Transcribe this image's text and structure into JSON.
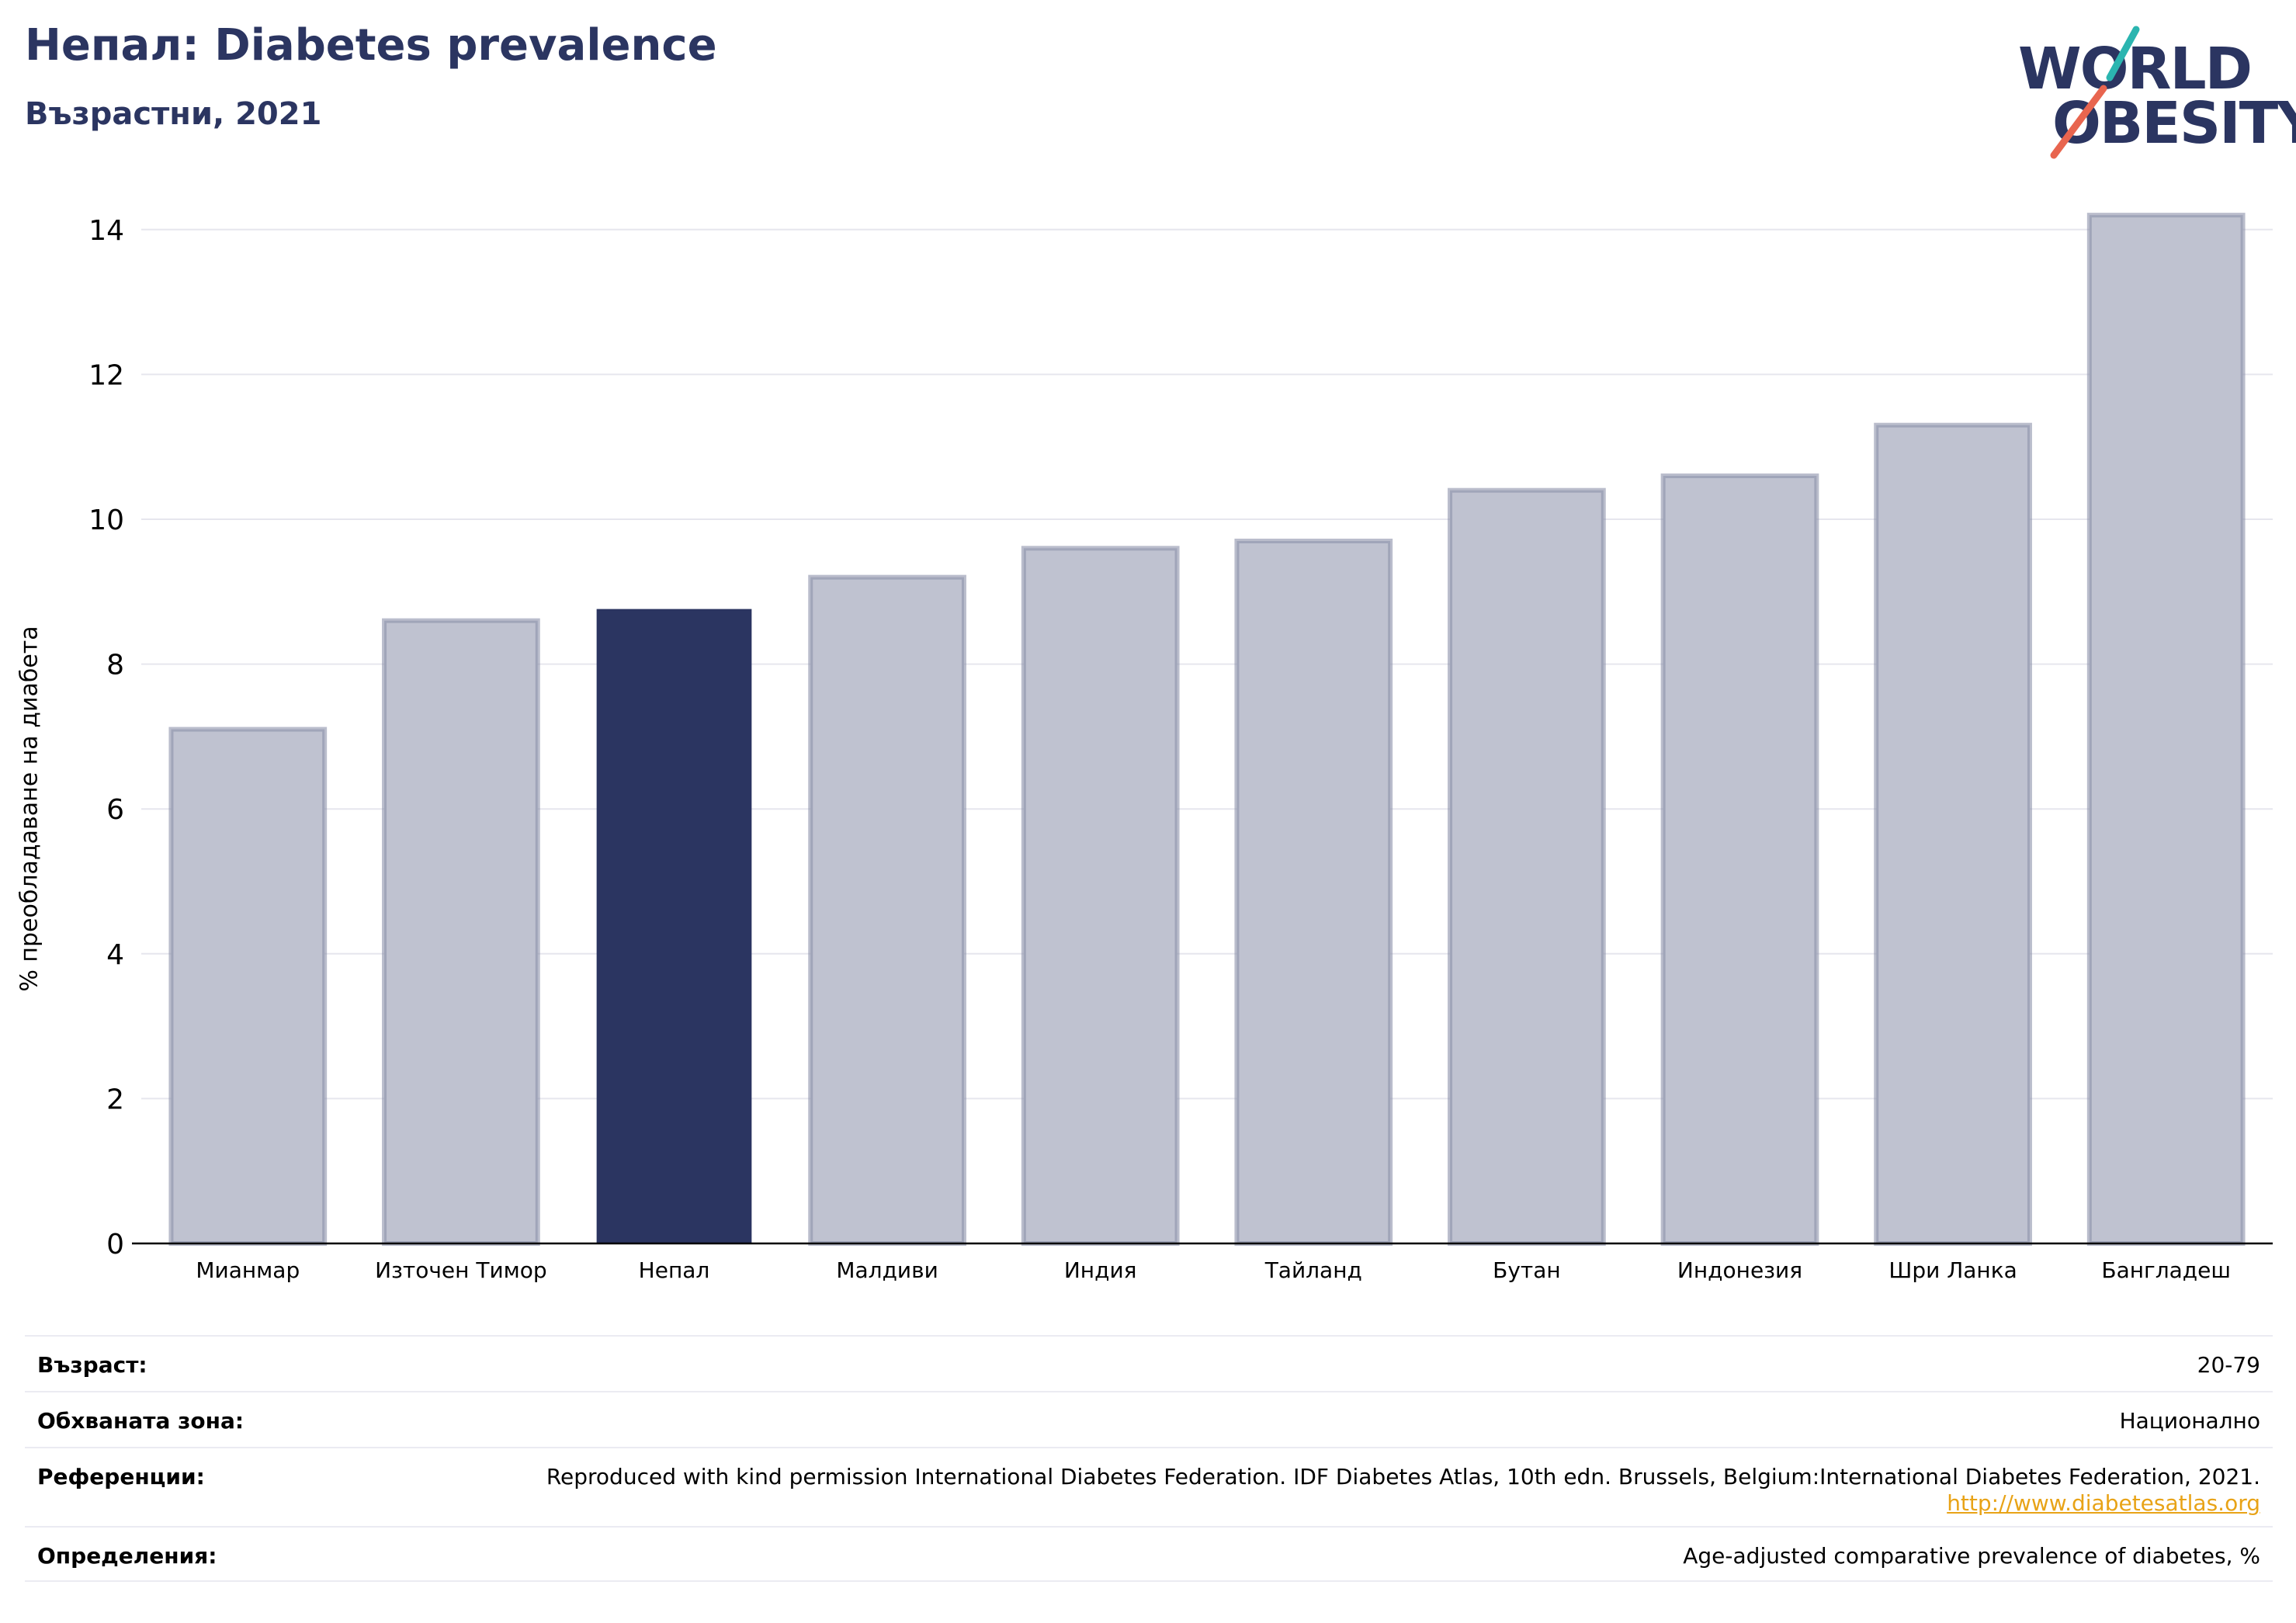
{
  "header": {
    "title": "Непал: Diabetes prevalence",
    "subtitle": "Възрастни, 2021"
  },
  "logo": {
    "line1": "WORLD",
    "line2": "OBESITY",
    "accent_teal": "#2bb5b0",
    "accent_coral": "#e8654f",
    "text_color": "#2b3561"
  },
  "colors": {
    "highlight": "#2b3561",
    "bar_fill": "#bfc2d0",
    "bar_edge": "#8c91aa",
    "grid": "#e6e6ee"
  },
  "chart_data": {
    "type": "bar",
    "title": "Непал: Diabetes prevalence",
    "subtitle": "Възрастни, 2021",
    "ylabel": "% преобладаване на диабета",
    "xlabel": "",
    "categories": [
      "Мианмар",
      "Източен Тимор",
      "Непал",
      "Малдиви",
      "Индия",
      "Тайланд",
      "Бутан",
      "Индонезия",
      "Шри Ланка",
      "Бангладеш"
    ],
    "values": [
      7.1,
      8.6,
      8.75,
      9.2,
      9.6,
      9.7,
      10.4,
      10.6,
      11.3,
      14.2
    ],
    "highlight_category": "Непал",
    "ylim": [
      0,
      14.5
    ],
    "yticks": [
      0,
      2,
      4,
      6,
      8,
      10,
      12,
      14
    ],
    "grid": true,
    "legend": "none"
  },
  "info": {
    "age_label": "Възраст:",
    "age_value": "20-79",
    "coverage_label": "Обхваната зона:",
    "coverage_value": "Национално",
    "references_label": "Референции:",
    "references_text": "Reproduced with kind permission International Diabetes Federation.  IDF Diabetes Atlas, 10th edn. Brussels, Belgium:International Diabetes Federation, 2021.",
    "references_link": "http://www.diabetesatlas.org",
    "definitions_label": "Определения:",
    "definitions_value": "Age-adjusted comparative prevalence of diabetes, %"
  }
}
